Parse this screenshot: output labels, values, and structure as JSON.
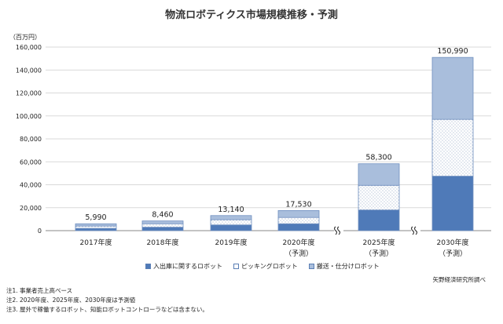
{
  "chart_data": {
    "type": "bar",
    "stacked": true,
    "title": "物流ロボティクス市場規模推移・予測",
    "unit_label": "（百万円）",
    "categories": [
      {
        "label": "2017年度",
        "sublabel": ""
      },
      {
        "label": "2018年度",
        "sublabel": ""
      },
      {
        "label": "2019年度",
        "sublabel": ""
      },
      {
        "label": "2020年度",
        "sublabel": "（予測）"
      },
      {
        "label": "2025年度",
        "sublabel": "（予測）"
      },
      {
        "label": "2030年度",
        "sublabel": "（予測）"
      }
    ],
    "series": [
      {
        "name": "入出庫に関するロボット",
        "color": "#4f7ab8",
        "pattern": "solid",
        "values": [
          2000,
          3000,
          5000,
          6000,
          18000,
          47500
        ]
      },
      {
        "name": "ピッキングロボット",
        "color": "#ffffff",
        "pattern": "dots",
        "values": [
          2000,
          3000,
          4500,
          5500,
          21500,
          49500
        ]
      },
      {
        "name": "搬送・仕分けロボット",
        "color": "#a9bedc",
        "pattern": "light",
        "values": [
          1990,
          2460,
          3640,
          6030,
          18800,
          53990
        ]
      }
    ],
    "totals": [
      "5,990",
      "8,460",
      "13,140",
      "17,530",
      "58,300",
      "150,990"
    ],
    "ylim": [
      0,
      160000
    ],
    "yticks": [
      "0",
      "20,000",
      "40,000",
      "60,000",
      "80,000",
      "100,000",
      "120,000",
      "140,000",
      "160,000"
    ],
    "axis_break_after": [
      3,
      4
    ],
    "grid": true,
    "legend_position": "bottom"
  },
  "source": "矢野経済研究所調べ",
  "notes": [
    "注1.  事業者売上高ベース",
    "注2.  2020年度、2025年度、2030年度は予測値",
    "注3.  屋外で稼働するロボット、知能ロボットコントローラなどは含まない。"
  ]
}
